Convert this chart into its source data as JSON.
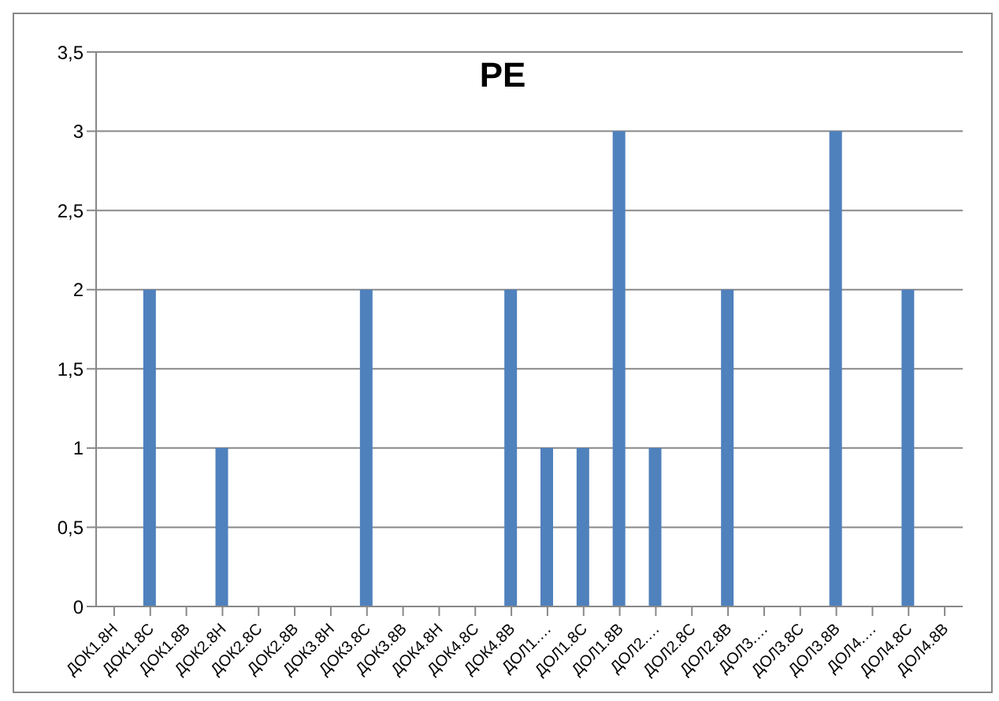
{
  "chart_data": {
    "type": "bar",
    "title": "РЕ",
    "categories": [
      "ДОК1.8Н",
      "ДОК1.8С",
      "ДОК1.8В",
      "ДОК2.8Н",
      "ДОК2.8С",
      "ДОК2.8В",
      "ДОК3.8Н",
      "ДОК3.8С",
      "ДОК3.8В",
      "ДОК4.8Н",
      "ДОК4.8С",
      "ДОК4.8В",
      "ДОЛ1.…",
      "ДОЛ1.8С",
      "ДОЛ1.8В",
      "ДОЛ2.…",
      "ДОЛ2.8С",
      "ДОЛ2.8В",
      "ДОЛ3.…",
      "ДОЛ3.8С",
      "ДОЛ3.8В",
      "ДОЛ4.…",
      "ДОЛ4.8С",
      "ДОЛ4.8В"
    ],
    "values": [
      0,
      2,
      0,
      1,
      0,
      0,
      0,
      2,
      0,
      0,
      0,
      2,
      1,
      1,
      3,
      1,
      0,
      2,
      0,
      0,
      3,
      0,
      2,
      0
    ],
    "color": "#4f81bd",
    "ylim": [
      0,
      3.5
    ],
    "yticks": [
      0,
      {
        "value": 0.5,
        "label": "0,5"
      },
      1,
      {
        "value": 1.5,
        "label": "1,5"
      },
      2,
      {
        "value": 2.5,
        "label": "2,5"
      },
      3,
      {
        "value": 3.5,
        "label": "3,5"
      }
    ],
    "grid": "y"
  }
}
